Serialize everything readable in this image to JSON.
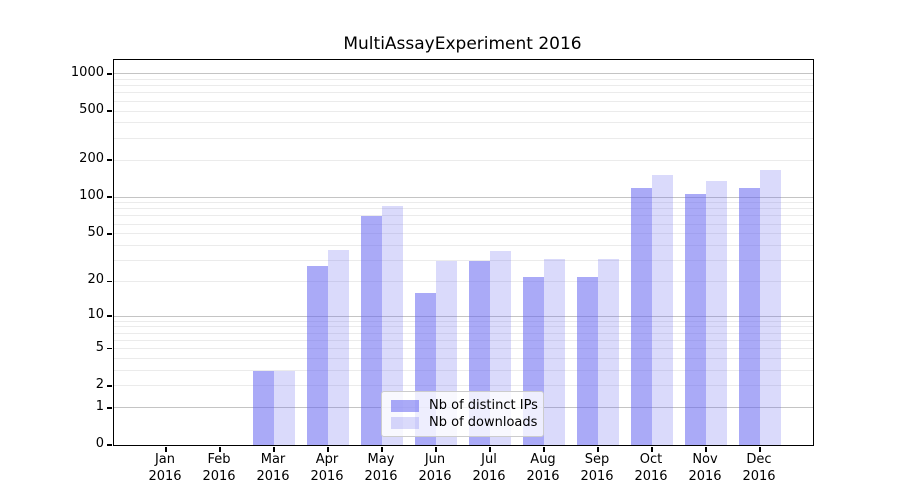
{
  "chart_data": {
    "type": "bar",
    "title": "MultiAssayExperiment 2016",
    "categories": [
      "Jan",
      "Feb",
      "Mar",
      "Apr",
      "May",
      "Jun",
      "Jul",
      "Aug",
      "Sep",
      "Oct",
      "Nov",
      "Dec"
    ],
    "x_label_second_line": "2016",
    "series": [
      {
        "name": "Nb of distinct IPs",
        "color": "rgba(100,100,240,0.55)",
        "values": [
          0,
          0,
          3,
          27,
          70,
          16,
          30,
          22,
          22,
          119,
          105,
          118
        ]
      },
      {
        "name": "Nb of downloads",
        "color": "rgba(100,100,240,0.24)",
        "values": [
          0,
          0,
          3,
          37,
          85,
          30,
          36,
          31,
          31,
          152,
          134,
          166
        ]
      }
    ],
    "yscale": "log1p",
    "yticks": [
      0,
      1,
      2,
      5,
      10,
      20,
      50,
      100,
      200,
      500,
      1000
    ],
    "ylim": [
      0,
      1000
    ],
    "grid": true,
    "legend_position": "inside lower center-right"
  },
  "colors": {
    "major_grid": "#c4c4c4",
    "minor_grid": "#ebebeb",
    "axis": "#000000",
    "background": "#ffffff",
    "legend_border": "#cccccc",
    "legend_background": "rgba(255,255,255,0.8)"
  }
}
